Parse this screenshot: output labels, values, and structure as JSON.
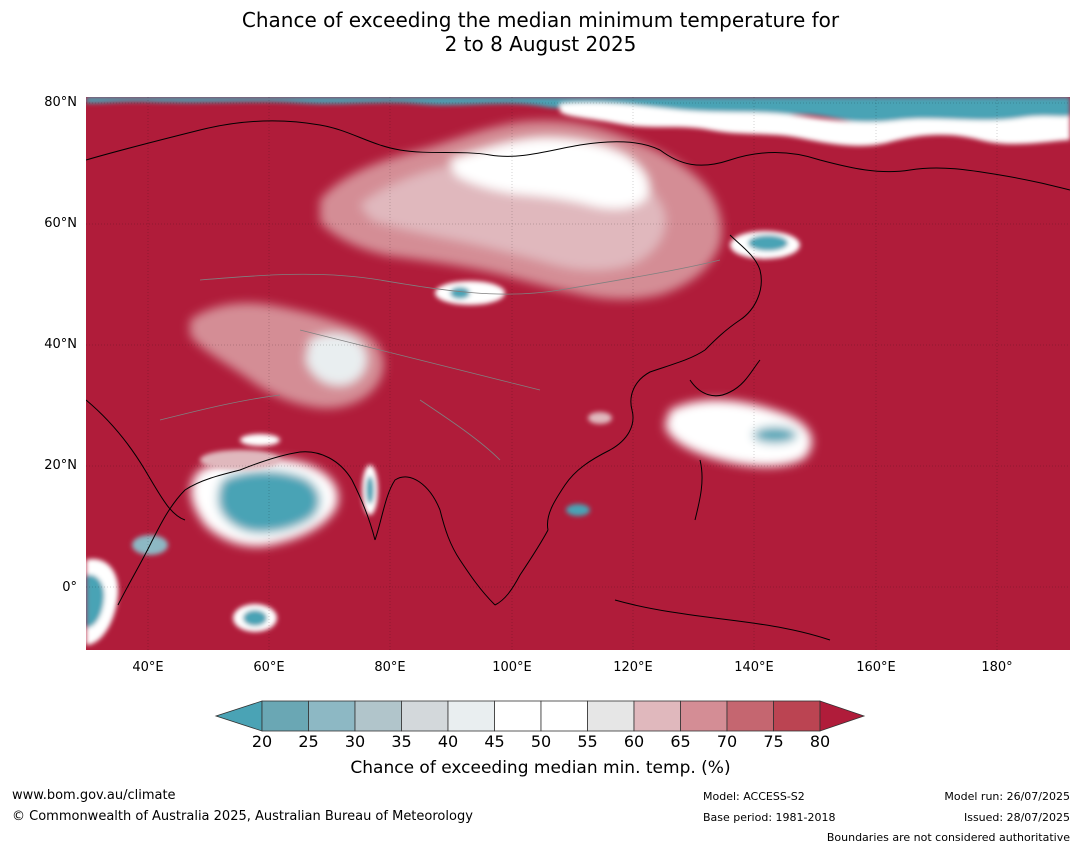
{
  "title": {
    "line1": "Chance of exceeding the median minimum temperature for",
    "line2": "2 to 8 August 2025"
  },
  "map": {
    "lat_labels": [
      "80°N",
      "60°N",
      "40°N",
      "20°N",
      "0°"
    ],
    "lon_labels": [
      "40°E",
      "60°E",
      "80°E",
      "100°E",
      "120°E",
      "140°E",
      "160°E",
      "180°"
    ],
    "colors": {
      "high": "#b01c3a",
      "ocean_base": "#b01c3a",
      "low": "#4aa3b5",
      "neutral": "#ffffff",
      "coast": "#000000",
      "border": "#808080"
    }
  },
  "colorbar": {
    "ticks": [
      "20",
      "25",
      "30",
      "35",
      "40",
      "45",
      "50",
      "55",
      "60",
      "65",
      "70",
      "75",
      "80"
    ],
    "colors": [
      "#4aa3b5",
      "#6aa7b4",
      "#8db8c4",
      "#b1c5cb",
      "#d3d8db",
      "#e9eef0",
      "#ffffff",
      "#ffffff",
      "#e6e6e6",
      "#e0b8bd",
      "#d48d95",
      "#c56670",
      "#bb4452",
      "#b01c3a"
    ],
    "label": "Chance of exceeding median min. temp. (%)"
  },
  "footer": {
    "website": "www.bom.gov.au/climate",
    "copyright": "© Commonwealth of Australia 2025, Australian Bureau of Meteorology",
    "model": "Model: ACCESS-S2",
    "base_period": "Base period: 1981-2018",
    "model_run": "Model run: 26/07/2025",
    "issued": "Issued: 28/07/2025",
    "disclaimer": "Boundaries are not considered authoritative"
  }
}
